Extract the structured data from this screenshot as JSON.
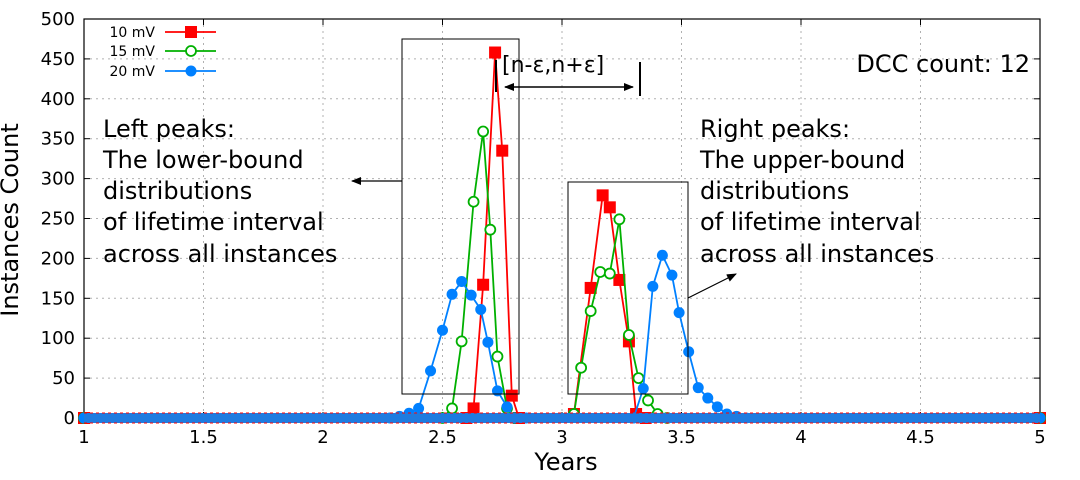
{
  "chart_data": {
    "type": "line",
    "xlabel": "Years",
    "ylabel": "Instances Count",
    "xlim": [
      1,
      5
    ],
    "ylim": [
      0,
      500
    ],
    "xticks": [
      1,
      1.5,
      2,
      2.5,
      3,
      3.5,
      4,
      4.5,
      5
    ],
    "xtick_labels": [
      "1",
      "1.5",
      "2",
      "2.5",
      "3",
      "3.5",
      "4",
      "4.5",
      "5"
    ],
    "yticks": [
      0,
      50,
      100,
      150,
      200,
      250,
      300,
      350,
      400,
      450,
      500
    ],
    "ytick_labels": [
      "0",
      "50",
      "100",
      "150",
      "200",
      "250",
      "300",
      "350",
      "400",
      "450",
      "500"
    ],
    "grid": true,
    "legend": {
      "placement": "top-left"
    },
    "series": [
      {
        "name": "10 mV",
        "color": "#ff0000",
        "marker": "square",
        "x": [
          1.0,
          2.6,
          2.63,
          2.67,
          2.72,
          2.75,
          2.79,
          2.82,
          3.05,
          3.12,
          3.17,
          3.2,
          3.24,
          3.28,
          3.31,
          3.35,
          5.0
        ],
        "y": [
          0,
          0,
          12,
          167,
          458,
          335,
          28,
          0,
          5,
          163,
          279,
          264,
          173,
          96,
          5,
          0,
          0
        ]
      },
      {
        "name": "15 mV",
        "color": "#00b000",
        "marker": "open-circle",
        "x": [
          1.0,
          2.5,
          2.54,
          2.58,
          2.63,
          2.67,
          2.7,
          2.73,
          2.77,
          2.8,
          3.05,
          3.08,
          3.12,
          3.16,
          3.2,
          3.24,
          3.28,
          3.32,
          3.36,
          3.4,
          3.44,
          5.0
        ],
        "y": [
          0,
          0,
          12,
          96,
          271,
          359,
          236,
          77,
          12,
          0,
          5,
          63,
          134,
          183,
          181,
          249,
          104,
          50,
          22,
          5,
          0,
          0
        ]
      },
      {
        "name": "20 mV",
        "color": "#0080ff",
        "marker": "filled-circle",
        "x": [
          1.0,
          2.28,
          2.32,
          2.36,
          2.4,
          2.45,
          2.5,
          2.54,
          2.58,
          2.62,
          2.66,
          2.69,
          2.73,
          2.77,
          2.8,
          2.85,
          3.3,
          3.34,
          3.38,
          3.42,
          3.46,
          3.49,
          3.53,
          3.57,
          3.61,
          3.65,
          3.69,
          3.73,
          3.77,
          5.0
        ],
        "y": [
          0,
          0,
          2,
          6,
          12,
          59,
          110,
          155,
          171,
          154,
          136,
          95,
          34,
          14,
          0,
          0,
          0,
          37,
          165,
          204,
          179,
          132,
          83,
          38,
          25,
          14,
          5,
          2,
          0,
          0
        ]
      }
    ],
    "annotations": {
      "dcc": "DCC count: 12",
      "interval": "[n-ε,n+ε]",
      "left_peaks": [
        "Left peaks:",
        "The lower-bound",
        "distributions",
        "of lifetime interval",
        "across all instances"
      ],
      "right_peaks": [
        "Right peaks:",
        "The upper-bound",
        "distributions",
        "of lifetime interval",
        "across all instances"
      ]
    }
  }
}
